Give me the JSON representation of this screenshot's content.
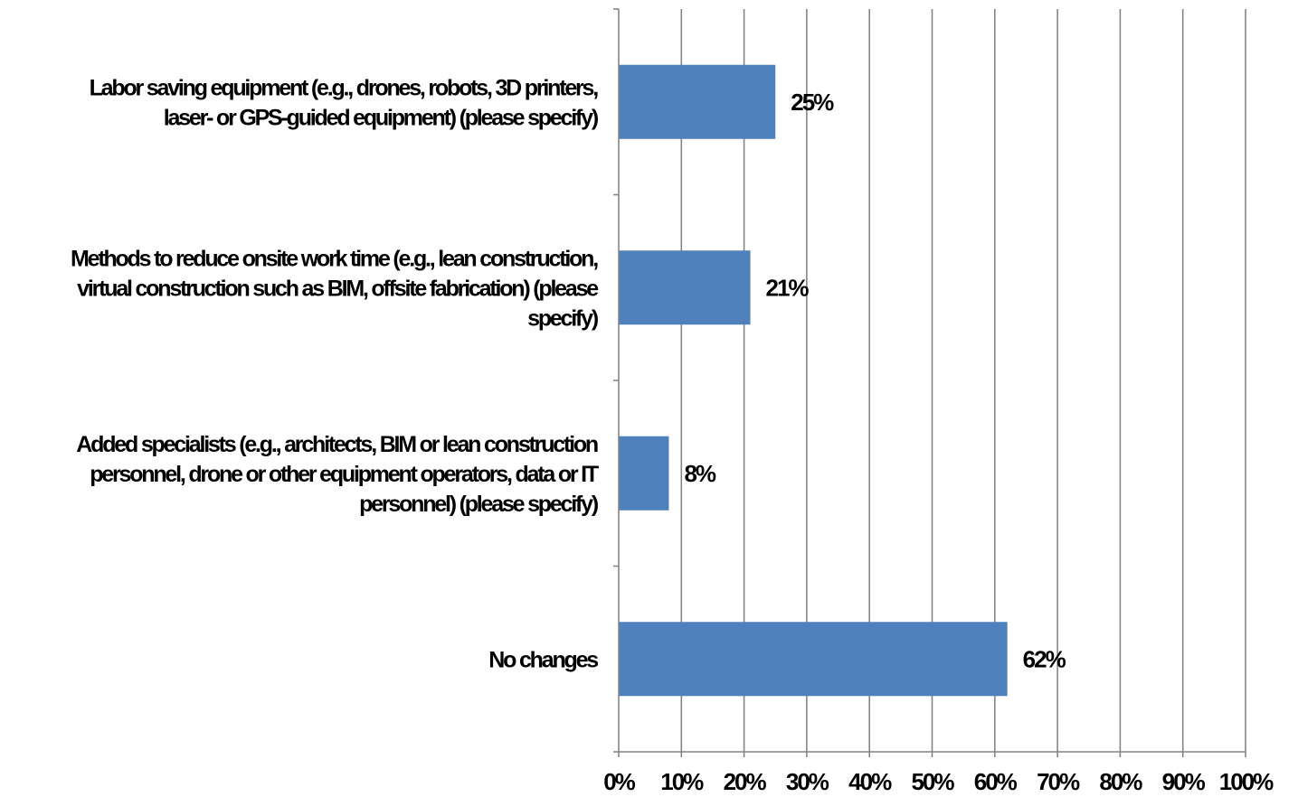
{
  "chart_data": {
    "type": "bar",
    "orientation": "horizontal",
    "categories": [
      [
        "Labor saving equipment (e.g., drones, robots, 3D printers,",
        "laser- or GPS-guided equipment) (please specify)"
      ],
      [
        "Methods to reduce onsite work time (e.g., lean construction,",
        "virtual construction such as BIM, offsite fabrication) (please",
        "specify)"
      ],
      [
        "Added specialists (e.g., architects, BIM or lean construction",
        "personnel, drone or other equipment operators, data or IT",
        "personnel) (please specify)"
      ],
      [
        "No changes"
      ]
    ],
    "values": [
      25,
      21,
      8,
      62
    ],
    "data_labels": [
      "25%",
      "21%",
      "8%",
      "62%"
    ],
    "xlim": [
      0,
      100
    ],
    "x_ticks": [
      0,
      10,
      20,
      30,
      40,
      50,
      60,
      70,
      80,
      90,
      100
    ],
    "x_tick_labels": [
      "0%",
      "10%",
      "20%",
      "30%",
      "40%",
      "50%",
      "60%",
      "70%",
      "80%",
      "90%",
      "100%"
    ],
    "grid": "vertical",
    "legend": "none",
    "colors": {
      "bar": "#4F81BD",
      "grid": "#868686"
    }
  }
}
